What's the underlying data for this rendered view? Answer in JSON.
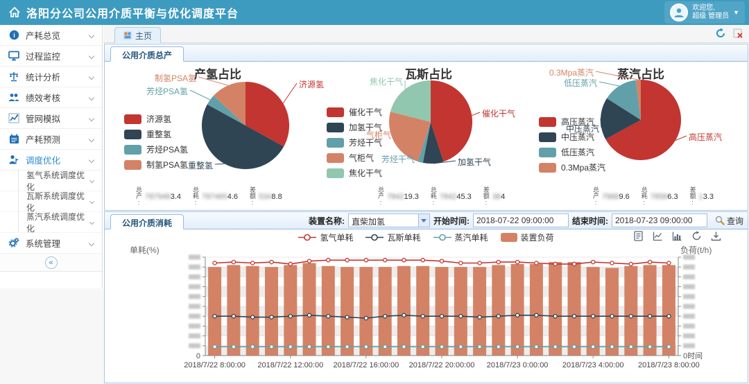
{
  "header": {
    "title": "洛阳分公司公用介质平衡与优化调度平台",
    "welcome_line1": "欢迎您,",
    "welcome_line2": "超级 管理员"
  },
  "tabbar": {
    "active_tab": "主页"
  },
  "sidebar": {
    "items": [
      {
        "label": "产耗总览",
        "icon": "info-icon",
        "active": false
      },
      {
        "label": "过程监控",
        "icon": "monitor-icon",
        "active": false
      },
      {
        "label": "统计分析",
        "icon": "scale-icon",
        "active": false
      },
      {
        "label": "绩效考核",
        "icon": "team-icon",
        "active": false
      },
      {
        "label": "管网模拟",
        "icon": "simulate-icon",
        "active": false
      },
      {
        "label": "产耗预测",
        "icon": "calendar-icon",
        "active": false
      },
      {
        "label": "调度优化",
        "icon": "dispatch-icon",
        "active": true,
        "children": [
          "氢气系统调度优化",
          "瓦斯系统调度优化",
          "蒸汽系统调度优化"
        ]
      },
      {
        "label": "系统管理",
        "icon": "gear-icon",
        "active": false
      }
    ],
    "collapse_glyph": "«"
  },
  "panels": {
    "production_title": "公用介质总产",
    "consumption_title": "公用介质消耗"
  },
  "filters": {
    "device_label": "装置名称:",
    "device_value": "直柴加氢",
    "start_label": "开始时间:",
    "start_value": "2018-07-22 09:00:00",
    "end_label": "结束时间:",
    "end_value": "2018-07-23 09:00:00",
    "search_label": "查询"
  },
  "stats": [
    {
      "items": [
        {
          "label": "总产:",
          "masked": "787948",
          "clear": "3.4"
        },
        {
          "label": "总耗:",
          "masked": "787465",
          "clear": "4.6"
        },
        {
          "label": "差额:",
          "masked": "534",
          "clear": "8.8"
        }
      ]
    },
    {
      "items": [
        {
          "label": "总产:",
          "masked": "7842",
          "clear": "19.3"
        },
        {
          "label": "总耗:",
          "masked": "7842",
          "clear": "45.3"
        },
        {
          "label": "差额:",
          "masked": "38",
          "clear": "4"
        }
      ]
    },
    {
      "items": [
        {
          "label": "总产:",
          "masked": "7968",
          "clear": "9.6"
        },
        {
          "label": "总耗:",
          "masked": "7858",
          "clear": "6.3"
        },
        {
          "label": "差额:",
          "masked": "1",
          "clear": "3.3"
        }
      ]
    }
  ],
  "colors": {
    "header_bg": "#3e9bc0",
    "palette_red": "#c23531",
    "palette_navy": "#2f4554",
    "palette_teal": "#61a0a8",
    "palette_salmon": "#d48265",
    "palette_green": "#91c7ae",
    "panel_border": "#98b9e0",
    "active_menu": "#2d8cd0"
  },
  "icons": {
    "home": "house-outline",
    "user_caret": "▼",
    "refresh_tabs": "circular-arrows",
    "close_tab": "page-with-red-x",
    "search": "magnifier",
    "toolbox": [
      "data-view",
      "line-chart-toggle",
      "bar-chart-toggle",
      "restore",
      "save-image"
    ]
  },
  "chart_data": [
    {
      "type": "pie",
      "title": "产氢占比",
      "series": [
        {
          "name": "济源氢",
          "value": 33,
          "color": "#c23531"
        },
        {
          "name": "重整氢",
          "value": 50,
          "color": "#2f4554"
        },
        {
          "name": "芳烃PSA氢",
          "value": 4,
          "color": "#61a0a8"
        },
        {
          "name": "制氢PSA氢",
          "value": 13,
          "color": "#d48265"
        }
      ],
      "legend_position": "left"
    },
    {
      "type": "pie",
      "title": "瓦斯占比",
      "series": [
        {
          "name": "催化干气",
          "value": 45,
          "color": "#c23531"
        },
        {
          "name": "加氢干气",
          "value": 8,
          "color": "#2f4554"
        },
        {
          "name": "芳烃干气",
          "value": 2,
          "color": "#61a0a8"
        },
        {
          "name": "气柜气",
          "value": 24,
          "color": "#d48265"
        },
        {
          "name": "焦化干气",
          "value": 21,
          "color": "#91c7ae"
        }
      ],
      "legend_position": "left"
    },
    {
      "type": "pie",
      "title": "蒸汽占比",
      "series": [
        {
          "name": "高压蒸汽",
          "value": 67,
          "color": "#c23531"
        },
        {
          "name": "中压蒸汽",
          "value": 17,
          "color": "#2f4554"
        },
        {
          "name": "低压蒸汽",
          "value": 14,
          "color": "#61a0a8"
        },
        {
          "name": "0.3Mpa蒸汽",
          "value": 2,
          "color": "#d48265"
        }
      ],
      "legend_position": "left"
    },
    {
      "type": "bar+line",
      "title": "公用介质消耗",
      "x_ticks": [
        "2018/7/22 8:00:00",
        "2018/7/22 12:00:00",
        "2018/7/22 16:00:00",
        "2018/7/22 20:00:00",
        "2018/7/23 0:00:00",
        "2018/7/23 4:00:00",
        "2018/7/23 8:00:00"
      ],
      "n_points": 25,
      "xaxis_name": "时间",
      "yaxis_left": {
        "name": "单耗(%)",
        "min_label": "0",
        "ticks_blurred": true
      },
      "yaxis_right": {
        "name": "负荷(t/h)",
        "min_label": "0",
        "ticks_blurred": true
      },
      "grid": "horizontal-stripes",
      "series": [
        {
          "name": "氢气单耗",
          "type": "line",
          "color": "#c23531",
          "values": [
            94,
            95,
            94,
            95,
            93,
            96,
            97,
            97,
            97,
            97,
            97,
            97,
            96,
            94,
            94,
            95,
            95,
            94,
            93,
            93,
            95,
            94,
            93,
            95,
            94
          ]
        },
        {
          "name": "瓦斯单耗",
          "type": "line",
          "color": "#2f4554",
          "values": [
            40,
            40,
            39,
            39,
            40,
            41,
            40,
            39,
            38,
            40,
            41,
            40,
            40,
            40,
            39,
            40,
            41,
            41,
            40,
            40,
            40,
            40,
            40,
            40,
            40
          ]
        },
        {
          "name": "蒸汽单耗",
          "type": "line",
          "color": "#61a0a8",
          "values": [
            9,
            9,
            9,
            9,
            9,
            9,
            9,
            9,
            9,
            9,
            9,
            9,
            9,
            9,
            9,
            9,
            9,
            9,
            9,
            9,
            9,
            9,
            9,
            9,
            9
          ]
        },
        {
          "name": "装置负荷",
          "type": "bar",
          "color": "#d48265",
          "values": [
            90,
            92,
            91,
            90,
            92,
            94,
            91,
            90,
            90,
            90,
            91,
            91,
            90,
            90,
            90,
            92,
            93,
            93,
            95,
            95,
            90,
            89,
            91,
            92,
            92
          ]
        }
      ]
    }
  ]
}
